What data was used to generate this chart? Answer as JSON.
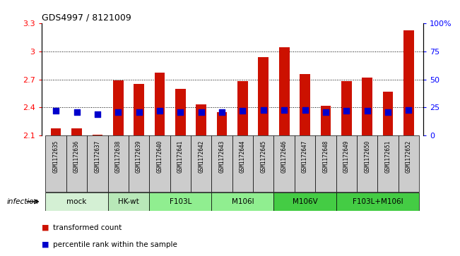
{
  "title": "GDS4997 / 8121009",
  "samples": [
    "GSM1172635",
    "GSM1172636",
    "GSM1172637",
    "GSM1172638",
    "GSM1172639",
    "GSM1172640",
    "GSM1172641",
    "GSM1172642",
    "GSM1172643",
    "GSM1172644",
    "GSM1172645",
    "GSM1172646",
    "GSM1172647",
    "GSM1172648",
    "GSM1172649",
    "GSM1172650",
    "GSM1172651",
    "GSM1172652"
  ],
  "transformed_counts": [
    2.18,
    2.18,
    2.11,
    2.69,
    2.65,
    2.77,
    2.6,
    2.43,
    2.35,
    2.68,
    2.94,
    3.04,
    2.76,
    2.42,
    2.68,
    2.72,
    2.57,
    3.22
  ],
  "percentile_ranks": [
    22,
    21,
    19,
    21,
    21,
    22,
    21,
    21,
    21,
    22,
    23,
    23,
    23,
    21,
    22,
    22,
    21,
    23
  ],
  "ylim_left": [
    2.1,
    3.3
  ],
  "ylim_right": [
    0,
    100
  ],
  "yticks_left": [
    2.1,
    2.4,
    2.7,
    3.0,
    3.3
  ],
  "ytick_labels_left": [
    "2.1",
    "2.4",
    "2.7",
    "3",
    "3.3"
  ],
  "yticks_right": [
    0,
    25,
    50,
    75,
    100
  ],
  "ytick_labels_right": [
    "0",
    "25",
    "50",
    "75",
    "100%"
  ],
  "groups": [
    {
      "label": "mock",
      "start": 0,
      "end": 3,
      "color": "#d4f0d4"
    },
    {
      "label": "HK-wt",
      "start": 3,
      "end": 5,
      "color": "#b8e8b8"
    },
    {
      "label": "F103L",
      "start": 5,
      "end": 8,
      "color": "#90ee90"
    },
    {
      "label": "M106I",
      "start": 8,
      "end": 11,
      "color": "#90ee90"
    },
    {
      "label": "M106V",
      "start": 11,
      "end": 14,
      "color": "#44cc44"
    },
    {
      "label": "F103L+M106I",
      "start": 14,
      "end": 18,
      "color": "#44cc44"
    }
  ],
  "bar_color": "#cc1100",
  "dot_color": "#0000cc",
  "base": 2.1,
  "infection_label": "infection",
  "legend_items": [
    {
      "color": "#cc1100",
      "label": "transformed count"
    },
    {
      "color": "#0000cc",
      "label": "percentile rank within the sample"
    }
  ],
  "bar_width": 0.5,
  "dot_size": 28,
  "sample_cell_color": "#cccccc"
}
